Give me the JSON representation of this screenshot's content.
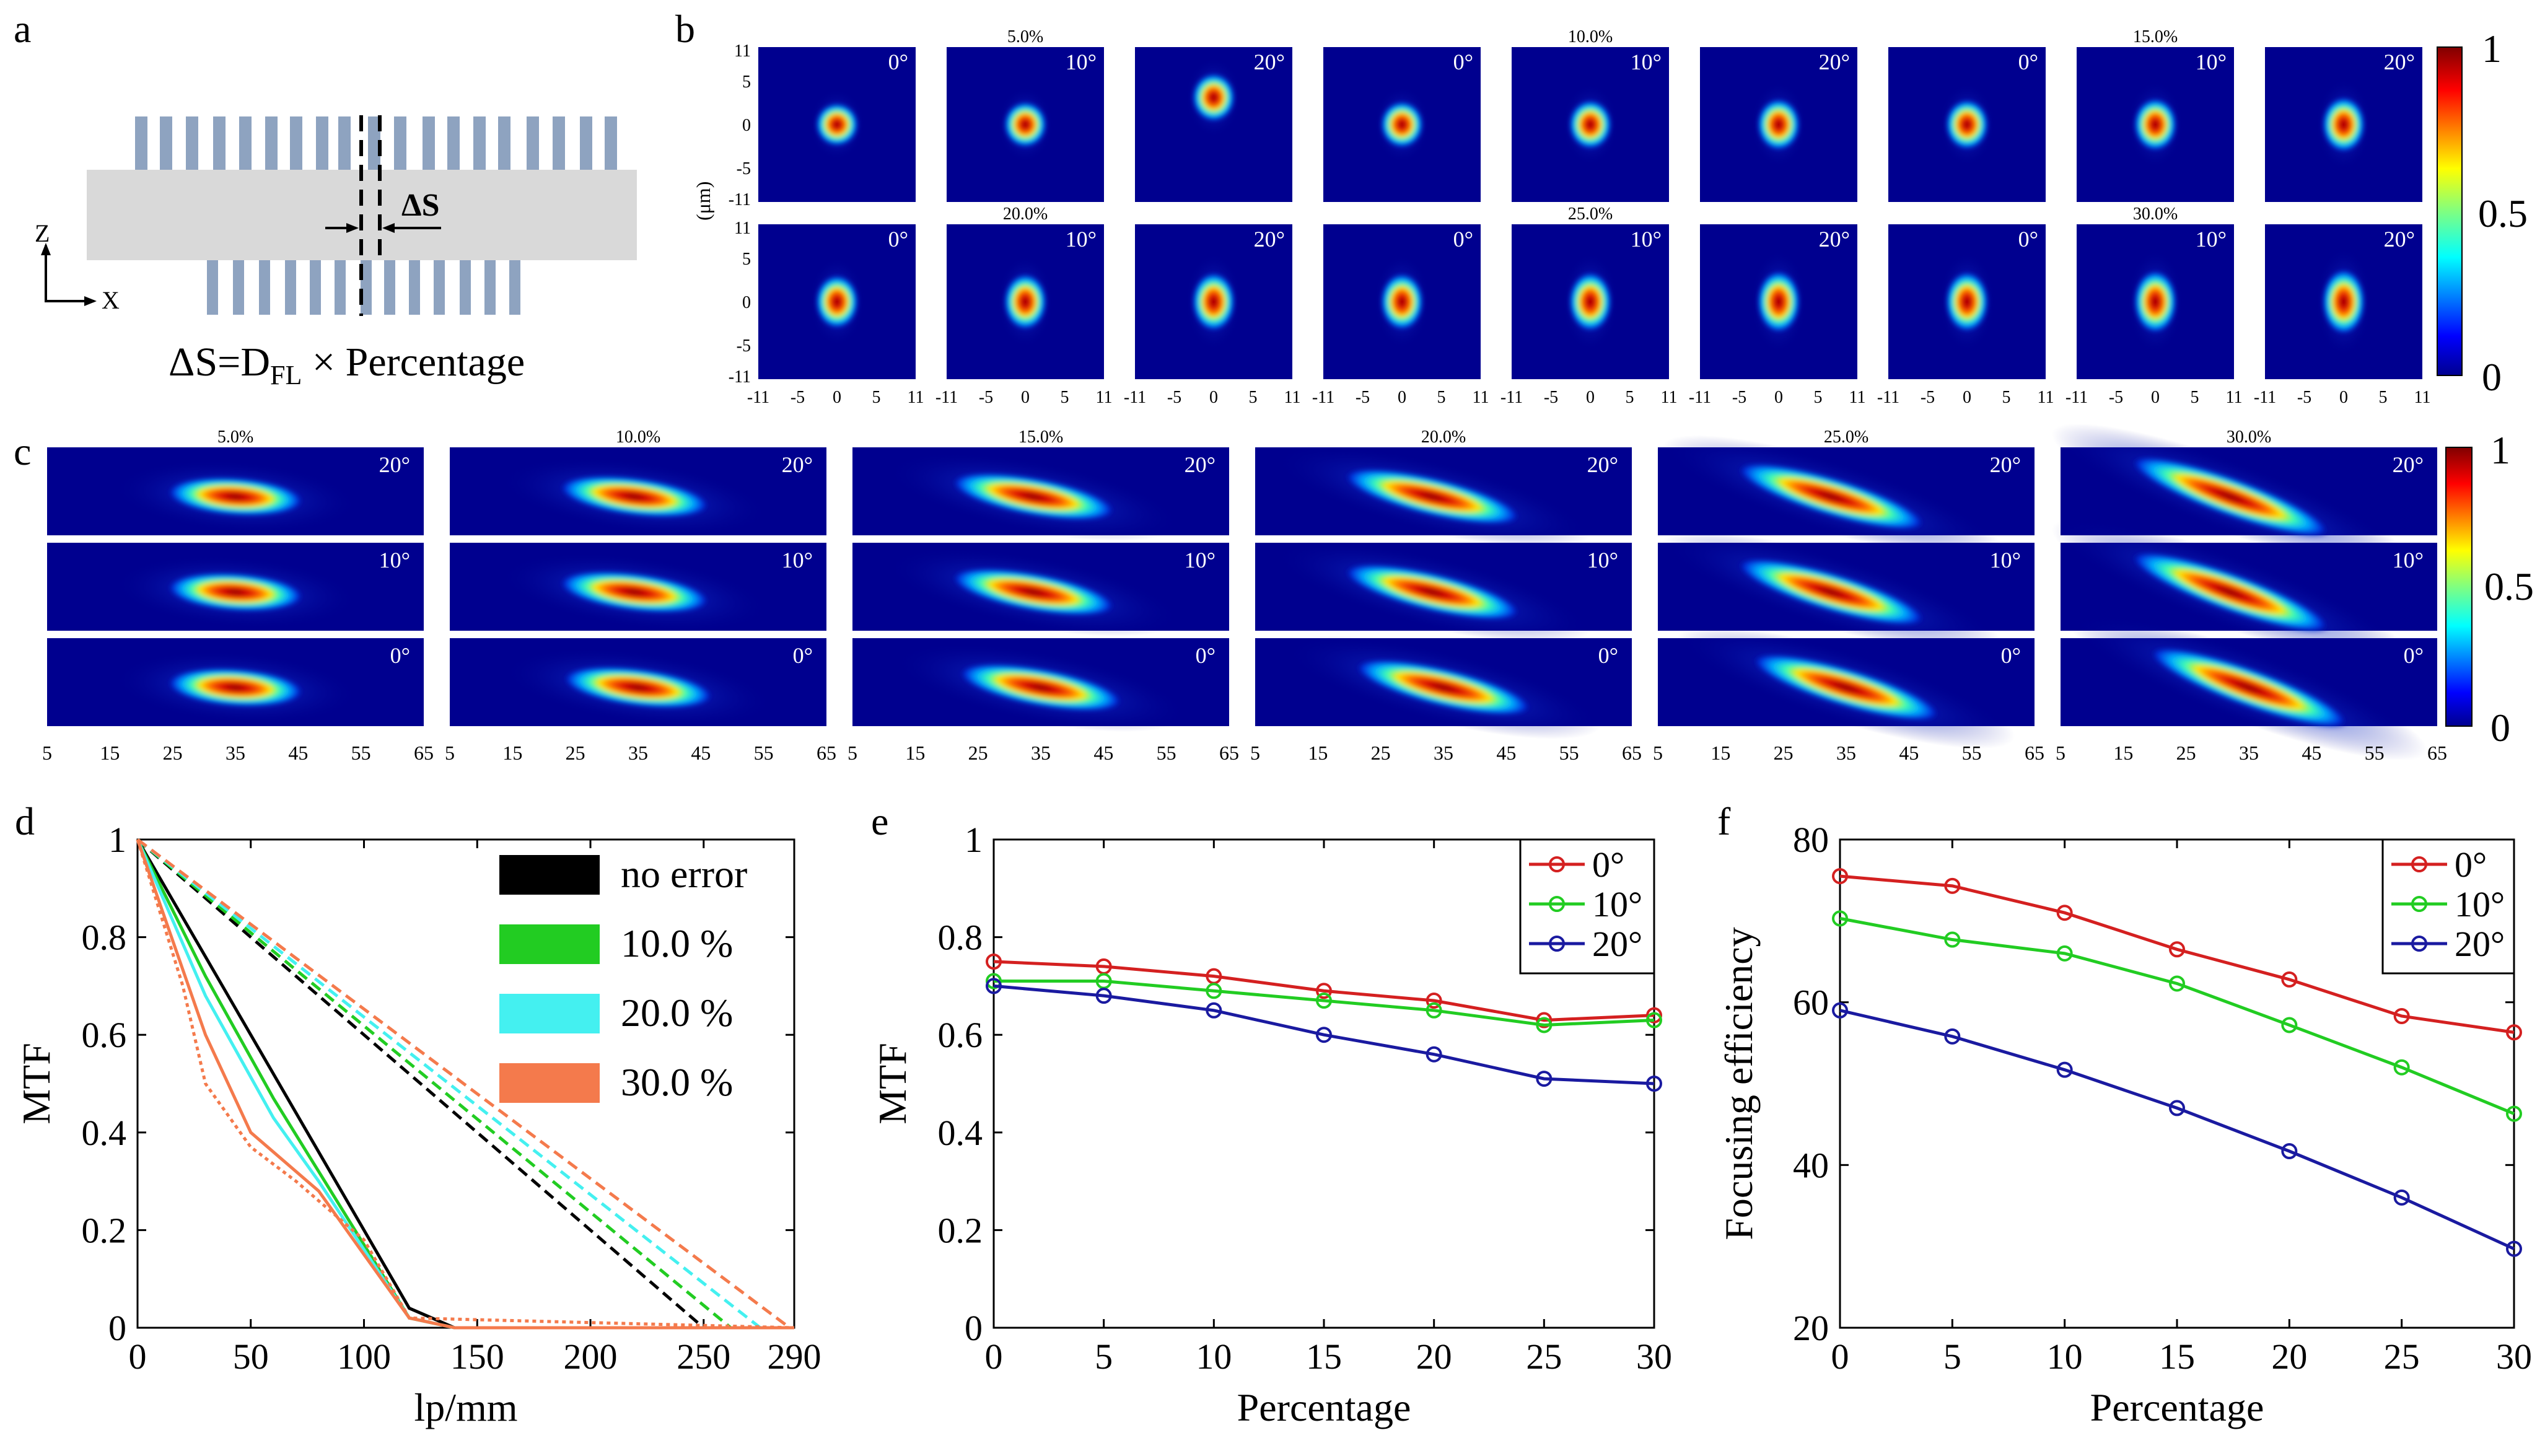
{
  "colors": {
    "red": "#d42020",
    "green": "#22cc22",
    "blue": "#1a1aa0",
    "black": "#000000",
    "cyan": "#44f0f0",
    "orange": "#f47a4c",
    "grating": "#8ea3c0",
    "substrate": "#d9d9d9"
  },
  "panel_a": {
    "label": "a",
    "axis_z": "Z",
    "axis_x": "X",
    "delta_label": "ΔS",
    "formula_left": "ΔS=D",
    "formula_sub": "FL",
    "formula_right": " × Percentage"
  },
  "panel_b": {
    "label": "b",
    "percent_labels": [
      "5.0%",
      "10.0%",
      "15.0%",
      "20.0%",
      "25.0%",
      "30.0%"
    ],
    "angles": [
      "0°",
      "10°",
      "20°"
    ],
    "y_unit": "(μm)",
    "y_ticks": [
      "11",
      "5",
      "0",
      "-5",
      "-11"
    ],
    "x_ticks": [
      "-11",
      "-5",
      "0",
      "5",
      "11"
    ],
    "colorbar_ticks": [
      "1",
      "0.5",
      "0"
    ],
    "spot_offsets": [
      [
        0,
        0,
        -0.35
      ],
      [
        0,
        0,
        0
      ],
      [
        0,
        0,
        0
      ],
      [
        0,
        0,
        0
      ],
      [
        0,
        0,
        0
      ],
      [
        0,
        0,
        0
      ]
    ]
  },
  "panel_c": {
    "label": "c",
    "percent_labels": [
      "5.0%",
      "10.0%",
      "15.0%",
      "20.0%",
      "25.0%",
      "30.0%"
    ],
    "row_angles": [
      "20°",
      "10°",
      "0°"
    ],
    "x_ticks": [
      "5",
      "15",
      "25",
      "35",
      "45",
      "55",
      "65"
    ],
    "colorbar_ticks": [
      "1",
      "0.5",
      "0"
    ]
  },
  "chart_data": [
    {
      "panel": "d",
      "type": "line",
      "xlabel": "lp/mm",
      "ylabel": "MTF",
      "xlim": [
        0,
        290
      ],
      "ylim": [
        0,
        1
      ],
      "xticks": [
        "0",
        "50",
        "100",
        "150",
        "200",
        "250",
        "290"
      ],
      "yticks": [
        "0",
        "0.2",
        "0.4",
        "0.6",
        "0.8",
        "1"
      ],
      "legend_position": "top-right",
      "legend": [
        "no error",
        "10.0 %",
        "20.0 %",
        "30.0 %"
      ],
      "series": [
        {
          "name": "no error",
          "style": "solid",
          "x": [
            0,
            120,
            140,
            290
          ],
          "y": [
            1,
            0.04,
            0,
            0
          ]
        },
        {
          "name": "no error",
          "style": "dashed",
          "x": [
            0,
            250
          ],
          "y": [
            1,
            0
          ]
        },
        {
          "name": "10.0 %",
          "style": "solid",
          "x": [
            0,
            30,
            60,
            80,
            120,
            140,
            290
          ],
          "y": [
            1,
            0.72,
            0.47,
            0.32,
            0.02,
            0,
            0
          ]
        },
        {
          "name": "10.0 %",
          "style": "dashed",
          "x": [
            0,
            262
          ],
          "y": [
            1,
            0
          ]
        },
        {
          "name": "20.0 %",
          "style": "solid",
          "x": [
            0,
            30,
            60,
            80,
            120,
            140,
            290
          ],
          "y": [
            1,
            0.68,
            0.43,
            0.3,
            0.02,
            0,
            0
          ]
        },
        {
          "name": "20.0 %",
          "style": "dashed",
          "x": [
            0,
            275
          ],
          "y": [
            1,
            0
          ]
        },
        {
          "name": "30.0 %",
          "style": "solid",
          "x": [
            0,
            30,
            50,
            80,
            120,
            140,
            290
          ],
          "y": [
            1,
            0.6,
            0.4,
            0.28,
            0.02,
            0,
            0
          ]
        },
        {
          "name": "30.0 %",
          "style": "dashed",
          "x": [
            0,
            288
          ],
          "y": [
            1,
            0
          ]
        },
        {
          "name": "30.0 %",
          "style": "dotted",
          "x": [
            0,
            20,
            30,
            50,
            70,
            100,
            120,
            290
          ],
          "y": [
            1,
            0.7,
            0.5,
            0.37,
            0.3,
            0.18,
            0.02,
            0
          ]
        }
      ]
    },
    {
      "panel": "e",
      "type": "line",
      "xlabel": "Percentage",
      "ylabel": "MTF",
      "xlim": [
        0,
        30
      ],
      "ylim": [
        0,
        1
      ],
      "xticks": [
        "0",
        "5",
        "10",
        "15",
        "20",
        "25",
        "30"
      ],
      "yticks": [
        "0",
        "0.2",
        "0.4",
        "0.6",
        "0.8",
        "1"
      ],
      "legend_position": "top-right",
      "x": [
        0,
        5,
        10,
        15,
        20,
        25,
        30
      ],
      "series": [
        {
          "name": "0°",
          "values": [
            0.75,
            0.74,
            0.72,
            0.69,
            0.67,
            0.63,
            0.64
          ]
        },
        {
          "name": "10°",
          "values": [
            0.71,
            0.71,
            0.69,
            0.67,
            0.65,
            0.62,
            0.63
          ]
        },
        {
          "name": "20°",
          "values": [
            0.7,
            0.68,
            0.65,
            0.6,
            0.56,
            0.51,
            0.5
          ]
        }
      ]
    },
    {
      "panel": "f",
      "type": "line",
      "xlabel": "Percentage",
      "ylabel": "Focusing efficiency",
      "xlim": [
        0,
        30
      ],
      "ylim": [
        20,
        80
      ],
      "xticks": [
        "0",
        "5",
        "10",
        "15",
        "20",
        "25",
        "30"
      ],
      "yticks": [
        "20",
        "40",
        "60",
        "80"
      ],
      "legend_position": "top-right",
      "x": [
        0,
        5,
        10,
        15,
        20,
        25,
        30
      ],
      "series": [
        {
          "name": "0°",
          "values": [
            75.5,
            74.3,
            71.0,
            66.5,
            62.8,
            58.3,
            56.3
          ]
        },
        {
          "name": "10°",
          "values": [
            70.3,
            67.7,
            66.0,
            62.3,
            57.2,
            52.0,
            46.3
          ]
        },
        {
          "name": "20°",
          "values": [
            59.0,
            55.8,
            51.7,
            47.0,
            41.7,
            36.0,
            29.7
          ]
        }
      ]
    }
  ]
}
